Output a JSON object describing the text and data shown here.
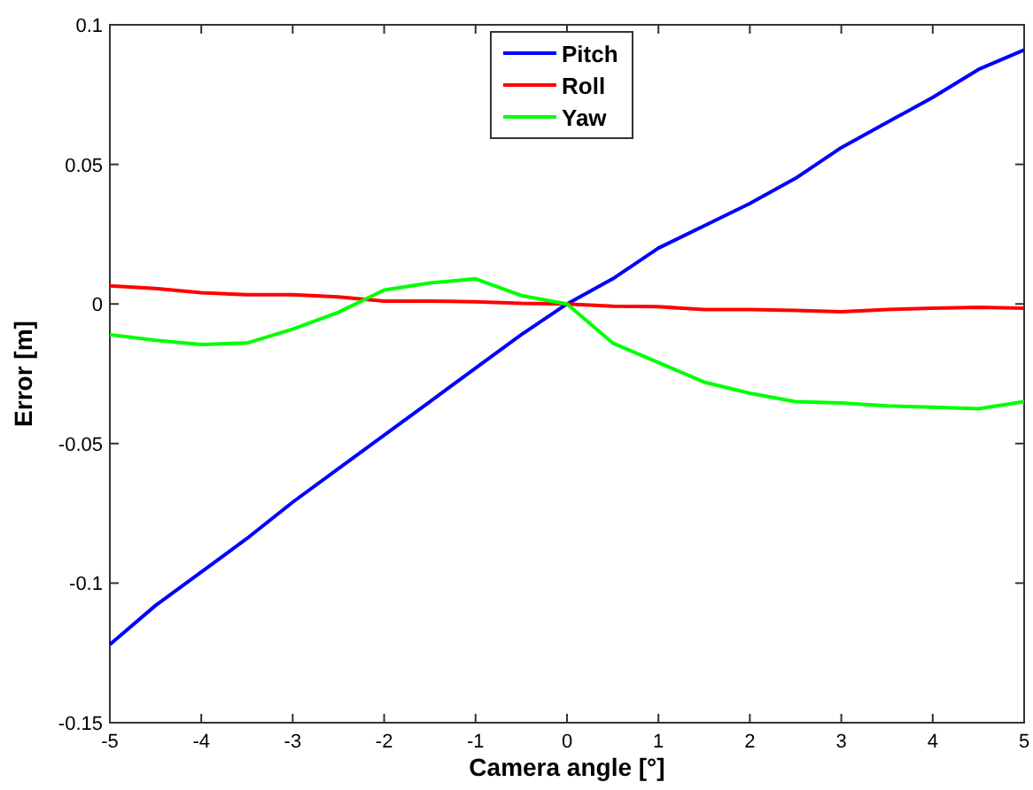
{
  "chart_data": {
    "type": "line",
    "xlabel": "Camera angle [°]",
    "ylabel": "Error [m]",
    "x": [
      -5,
      -4.5,
      -4,
      -3.5,
      -3,
      -2.5,
      -2,
      -1.5,
      -1,
      -0.5,
      0,
      0.5,
      1,
      1.5,
      2,
      2.5,
      3,
      3.5,
      4,
      4.5,
      5
    ],
    "series": [
      {
        "name": "Pitch",
        "color": "#0000ff",
        "values": [
          -0.122,
          -0.108,
          -0.096,
          -0.084,
          -0.071,
          -0.059,
          -0.047,
          -0.035,
          -0.023,
          -0.011,
          0,
          0.009,
          0.02,
          0.028,
          0.036,
          0.045,
          0.056,
          0.065,
          0.074,
          0.084,
          0.091
        ]
      },
      {
        "name": "Roll",
        "color": "#ff0000",
        "values": [
          0.0065,
          0.0055,
          0.004,
          0.0033,
          0.0033,
          0.0025,
          0.001,
          0.001,
          0.0008,
          0.0002,
          0,
          -0.0008,
          -0.001,
          -0.002,
          -0.002,
          -0.0023,
          -0.0028,
          -0.002,
          -0.0015,
          -0.0012,
          -0.0015
        ]
      },
      {
        "name": "Yaw",
        "color": "#00ff00",
        "values": [
          -0.011,
          -0.013,
          -0.0145,
          -0.014,
          -0.009,
          -0.003,
          0.005,
          0.0075,
          0.009,
          0.003,
          0,
          -0.014,
          -0.021,
          -0.028,
          -0.032,
          -0.035,
          -0.0355,
          -0.0365,
          -0.037,
          -0.0375,
          -0.035
        ]
      }
    ],
    "xlim": [
      -5,
      5
    ],
    "xticks": [
      {
        "value": -5,
        "label": "-5"
      },
      -4,
      -3,
      -2,
      -1,
      0,
      1,
      2,
      3,
      4,
      5
    ],
    "ylim": [
      -0.15,
      0.1
    ],
    "yticks": [
      -0.15,
      -0.1,
      -0.05,
      0,
      0.05,
      0.1
    ],
    "grid": false,
    "legend": "top",
    "marker": "none",
    "line_style": "solid"
  }
}
